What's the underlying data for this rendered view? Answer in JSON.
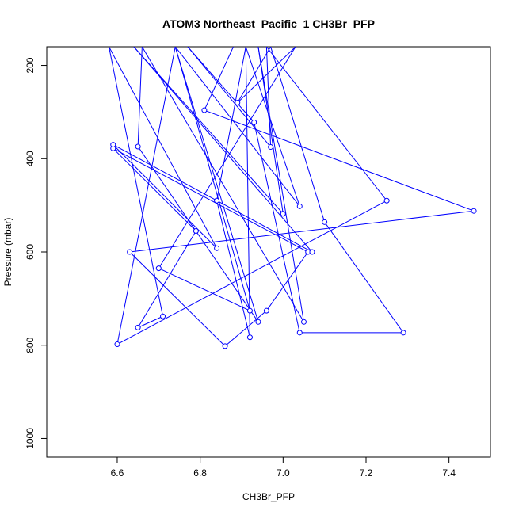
{
  "chart_data": {
    "type": "line",
    "title": "ATOM3 Northeast_Pacific_1 CH3Br_PFP",
    "xlabel": "CH3Br_PFP",
    "ylabel": "Pressure (mbar)",
    "xlim": [
      6.43,
      7.5
    ],
    "ylim": [
      1040,
      160
    ],
    "y_reversed": true,
    "x_ticks": [
      "6.6",
      "6.8",
      "7.0",
      "7.2",
      "7.4"
    ],
    "y_ticks": [
      "200",
      "400",
      "600",
      "800",
      "1000"
    ],
    "grid": false,
    "legend": "none",
    "marker": "open-circle",
    "series": [
      {
        "color": "#0000ff",
        "points": [
          [
            6.88,
            160
          ],
          [
            6.81,
            296
          ],
          [
            7.46,
            512
          ],
          [
            6.63,
            600
          ],
          [
            6.86,
            802
          ],
          [
            6.96,
            726
          ],
          [
            7.06,
            600
          ],
          [
            6.59,
            378
          ],
          [
            6.79,
            555
          ],
          [
            6.65,
            762
          ],
          [
            6.71,
            738
          ],
          [
            6.58,
            160
          ],
          [
            6.84,
            592
          ],
          [
            6.59,
            370
          ],
          [
            7.07,
            600
          ],
          [
            6.64,
            160
          ],
          [
            7.0,
            518
          ],
          [
            6.94,
            160
          ],
          [
            7.05,
            750
          ],
          [
            6.66,
            160
          ],
          [
            6.65,
            374
          ],
          [
            6.94,
            750
          ],
          [
            6.74,
            160
          ],
          [
            6.6,
            798
          ],
          [
            7.25,
            490
          ],
          [
            6.96,
            160
          ],
          [
            6.97,
            375
          ],
          [
            6.77,
            160
          ],
          [
            6.93,
            322
          ],
          [
            7.04,
            773
          ],
          [
            7.29,
            773
          ],
          [
            7.1,
            536
          ],
          [
            6.97,
            160
          ],
          [
            6.89,
            280
          ],
          [
            7.03,
            160
          ],
          [
            6.7,
            635
          ],
          [
            6.92,
            726
          ],
          [
            6.74,
            160
          ],
          [
            7.04,
            502
          ],
          [
            6.91,
            160
          ],
          [
            6.84,
            490
          ],
          [
            6.92,
            783
          ],
          [
            6.91,
            160
          ]
        ]
      }
    ]
  }
}
